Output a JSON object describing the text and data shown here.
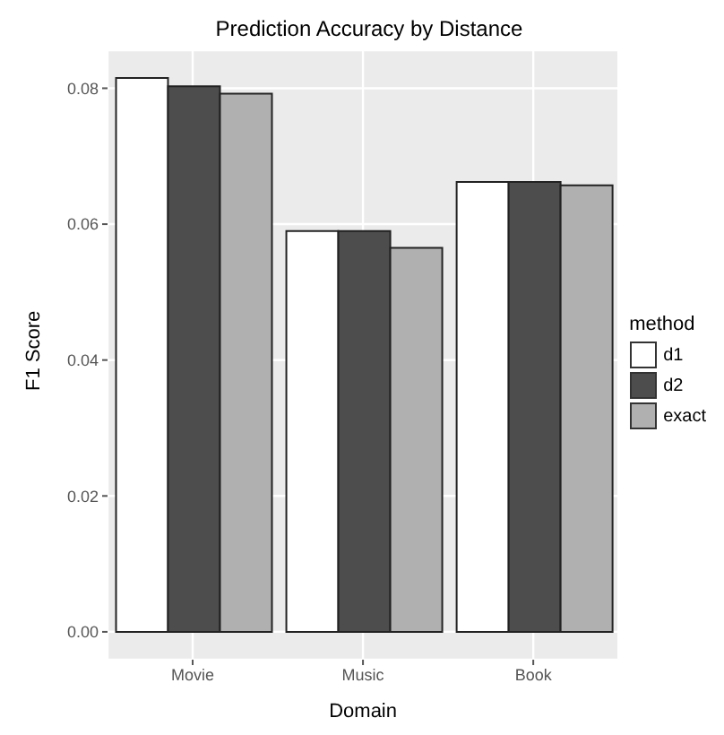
{
  "chart_data": {
    "type": "bar",
    "title": "Prediction Accuracy by Distance",
    "xlabel": "Domain",
    "ylabel": "F1 Score",
    "legend_title": "method",
    "categories": [
      "Movie",
      "Music",
      "Book"
    ],
    "series": [
      {
        "name": "d1",
        "color": "#ffffff",
        "values": [
          0.0815,
          0.059,
          0.0662
        ]
      },
      {
        "name": "d2",
        "color": "#4d4d4d",
        "values": [
          0.0803,
          0.059,
          0.0662
        ]
      },
      {
        "name": "exact",
        "color": "#b0b0b0",
        "values": [
          0.0792,
          0.0565,
          0.0657
        ]
      }
    ],
    "ylim": [
      -0.0041,
      0.0856
    ],
    "yticks": [
      {
        "value": 0,
        "label": "0.00"
      },
      {
        "value": 0.02,
        "label": "0.02"
      },
      {
        "value": 0.04,
        "label": "0.04"
      },
      {
        "value": 0.06,
        "label": "0.06"
      },
      {
        "value": 0.08,
        "label": "0.08"
      }
    ],
    "grid": true,
    "legend": "right"
  }
}
